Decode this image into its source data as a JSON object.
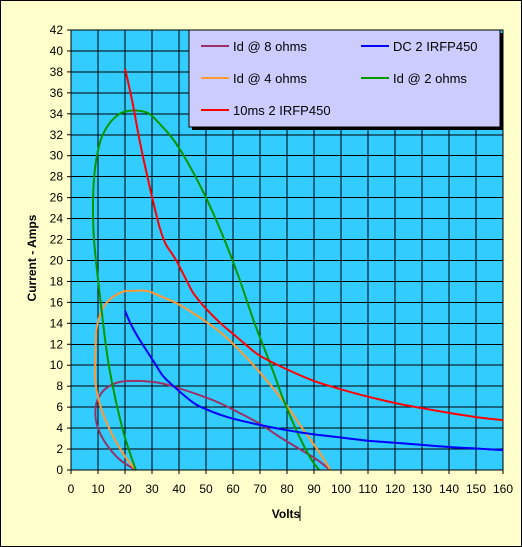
{
  "chart_data": {
    "type": "line",
    "xlabel": "Volts",
    "ylabel": "Current - Amps",
    "xlim": [
      0,
      160
    ],
    "ylim": [
      0,
      42
    ],
    "x_ticks": [
      0,
      10,
      20,
      30,
      40,
      50,
      60,
      70,
      80,
      90,
      100,
      110,
      120,
      130,
      140,
      150,
      160
    ],
    "y_ticks": [
      0,
      2,
      4,
      6,
      8,
      10,
      12,
      14,
      16,
      18,
      20,
      22,
      24,
      26,
      28,
      30,
      32,
      34,
      36,
      38,
      40,
      42
    ],
    "grid": true,
    "legend_position": "top-right",
    "plot_background": "#33ccff",
    "chart_background": "#ffffcc",
    "legend_background": "#ccccff",
    "series": [
      {
        "name": "Id @ 8 ohms",
        "color": "#993366",
        "points": [
          [
            24,
            0
          ],
          [
            18,
            1
          ],
          [
            13,
            2.5
          ],
          [
            10,
            4
          ],
          [
            9,
            5.5
          ],
          [
            10,
            6.8
          ],
          [
            13,
            7.8
          ],
          [
            18,
            8.4
          ],
          [
            25,
            8.5
          ],
          [
            33,
            8.3
          ],
          [
            40,
            7.8
          ],
          [
            47,
            7.2
          ],
          [
            55,
            6.4
          ],
          [
            62,
            5.5
          ],
          [
            70,
            4.4
          ],
          [
            77,
            3.2
          ],
          [
            84,
            2.1
          ],
          [
            91,
            1
          ],
          [
            96,
            0
          ]
        ]
      },
      {
        "name": "Id @ 4 ohms",
        "color": "#ff9933",
        "points": [
          [
            24,
            0
          ],
          [
            20,
            1.3
          ],
          [
            15,
            3.5
          ],
          [
            11,
            6
          ],
          [
            9,
            8.5
          ],
          [
            9,
            11
          ],
          [
            9.5,
            13.5
          ],
          [
            11,
            15
          ],
          [
            14,
            16.2
          ],
          [
            19,
            17
          ],
          [
            23,
            17.1
          ],
          [
            28,
            17.1
          ],
          [
            33,
            16.6
          ],
          [
            40,
            15.8
          ],
          [
            48,
            14.5
          ],
          [
            56,
            13
          ],
          [
            64,
            11
          ],
          [
            72,
            8.7
          ],
          [
            80,
            6.1
          ],
          [
            87,
            3.5
          ],
          [
            93,
            1.3
          ],
          [
            96,
            0
          ]
        ]
      },
      {
        "name": "Id @ 2 ohms",
        "color": "#009900",
        "points": [
          [
            24,
            0
          ],
          [
            19,
            4
          ],
          [
            14,
            10
          ],
          [
            11,
            16
          ],
          [
            8.5,
            22
          ],
          [
            8.2,
            26
          ],
          [
            9,
            29
          ],
          [
            11,
            31.5
          ],
          [
            14,
            33
          ],
          [
            18,
            34
          ],
          [
            22,
            34.3
          ],
          [
            25,
            34.3
          ],
          [
            29,
            34
          ],
          [
            33,
            33
          ],
          [
            38,
            31.5
          ],
          [
            44,
            29
          ],
          [
            50,
            26
          ],
          [
            56,
            22.5
          ],
          [
            62,
            18.5
          ],
          [
            68,
            14
          ],
          [
            74,
            10
          ],
          [
            79,
            6.5
          ],
          [
            84,
            3.5
          ],
          [
            89,
            1
          ],
          [
            92,
            0
          ]
        ]
      },
      {
        "name": "DC 2 IRFP450",
        "color": "#0000ff",
        "points": [
          [
            20,
            15.2
          ],
          [
            22,
            14
          ],
          [
            25,
            12.6
          ],
          [
            28,
            11.4
          ],
          [
            31,
            10.2
          ],
          [
            34,
            9
          ],
          [
            38,
            8
          ],
          [
            42,
            7.1
          ],
          [
            46,
            6.3
          ],
          [
            50,
            5.8
          ],
          [
            55,
            5.3
          ],
          [
            60,
            4.9
          ],
          [
            70,
            4.3
          ],
          [
            80,
            3.8
          ],
          [
            90,
            3.4
          ],
          [
            100,
            3.1
          ],
          [
            110,
            2.8
          ],
          [
            120,
            2.6
          ],
          [
            130,
            2.4
          ],
          [
            140,
            2.2
          ],
          [
            150,
            2.05
          ],
          [
            160,
            1.9
          ]
        ]
      },
      {
        "name": "10ms 2 IRFP450",
        "color": "#ff0000",
        "points": [
          [
            20,
            38.3
          ],
          [
            21,
            37.2
          ],
          [
            23,
            34.8
          ],
          [
            25,
            32
          ],
          [
            27,
            29.5
          ],
          [
            29,
            27.2
          ],
          [
            31,
            25
          ],
          [
            33,
            23
          ],
          [
            35,
            21.6
          ],
          [
            37,
            20.8
          ],
          [
            39,
            20
          ],
          [
            41,
            19
          ],
          [
            43,
            18
          ],
          [
            45,
            17
          ],
          [
            47,
            16.3
          ],
          [
            50,
            15.4
          ],
          [
            55,
            14.1
          ],
          [
            60,
            13
          ],
          [
            65,
            11.9
          ],
          [
            70,
            10.9
          ],
          [
            80,
            9.6
          ],
          [
            90,
            8.5
          ],
          [
            100,
            7.7
          ],
          [
            110,
            7
          ],
          [
            120,
            6.4
          ],
          [
            130,
            5.9
          ],
          [
            140,
            5.45
          ],
          [
            150,
            5.05
          ],
          [
            160,
            4.75
          ]
        ]
      }
    ]
  }
}
